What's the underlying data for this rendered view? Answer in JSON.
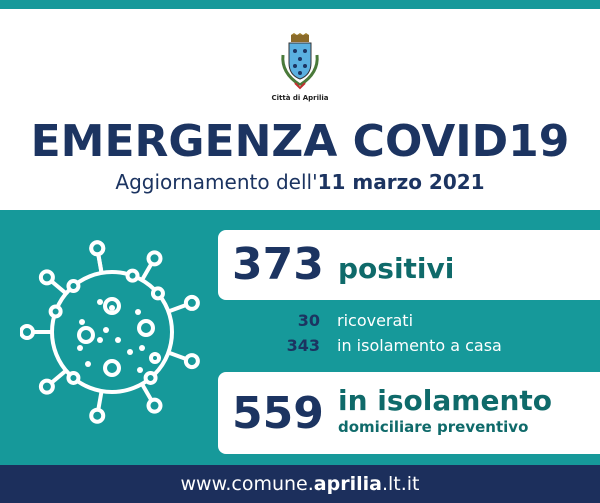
{
  "header": {
    "logo_text": "Città di Aprilia",
    "title": "EMERGENZA COVID19",
    "subtitle_prefix": "Aggiornamento dell'",
    "subtitle_date": "11 marzo 2021"
  },
  "stats": {
    "positive_count": "373",
    "positive_label": "positivi",
    "hospitalized_count": "30",
    "hospitalized_label": "ricoverati",
    "home_isolation_count": "343",
    "home_isolation_label": "in isolamento a casa",
    "preventive_count": "559",
    "preventive_label_1": "in isolamento",
    "preventive_label_2": "domiciliare preventivo"
  },
  "footer": {
    "url_prefix": "www.comune.",
    "url_bold": "aprilia",
    "url_suffix": ".lt.it"
  },
  "colors": {
    "teal": "#16999a",
    "navy": "#1c3461",
    "dark_teal": "#0f6a6a"
  },
  "icons": [
    "city-crest",
    "virus-icon"
  ]
}
